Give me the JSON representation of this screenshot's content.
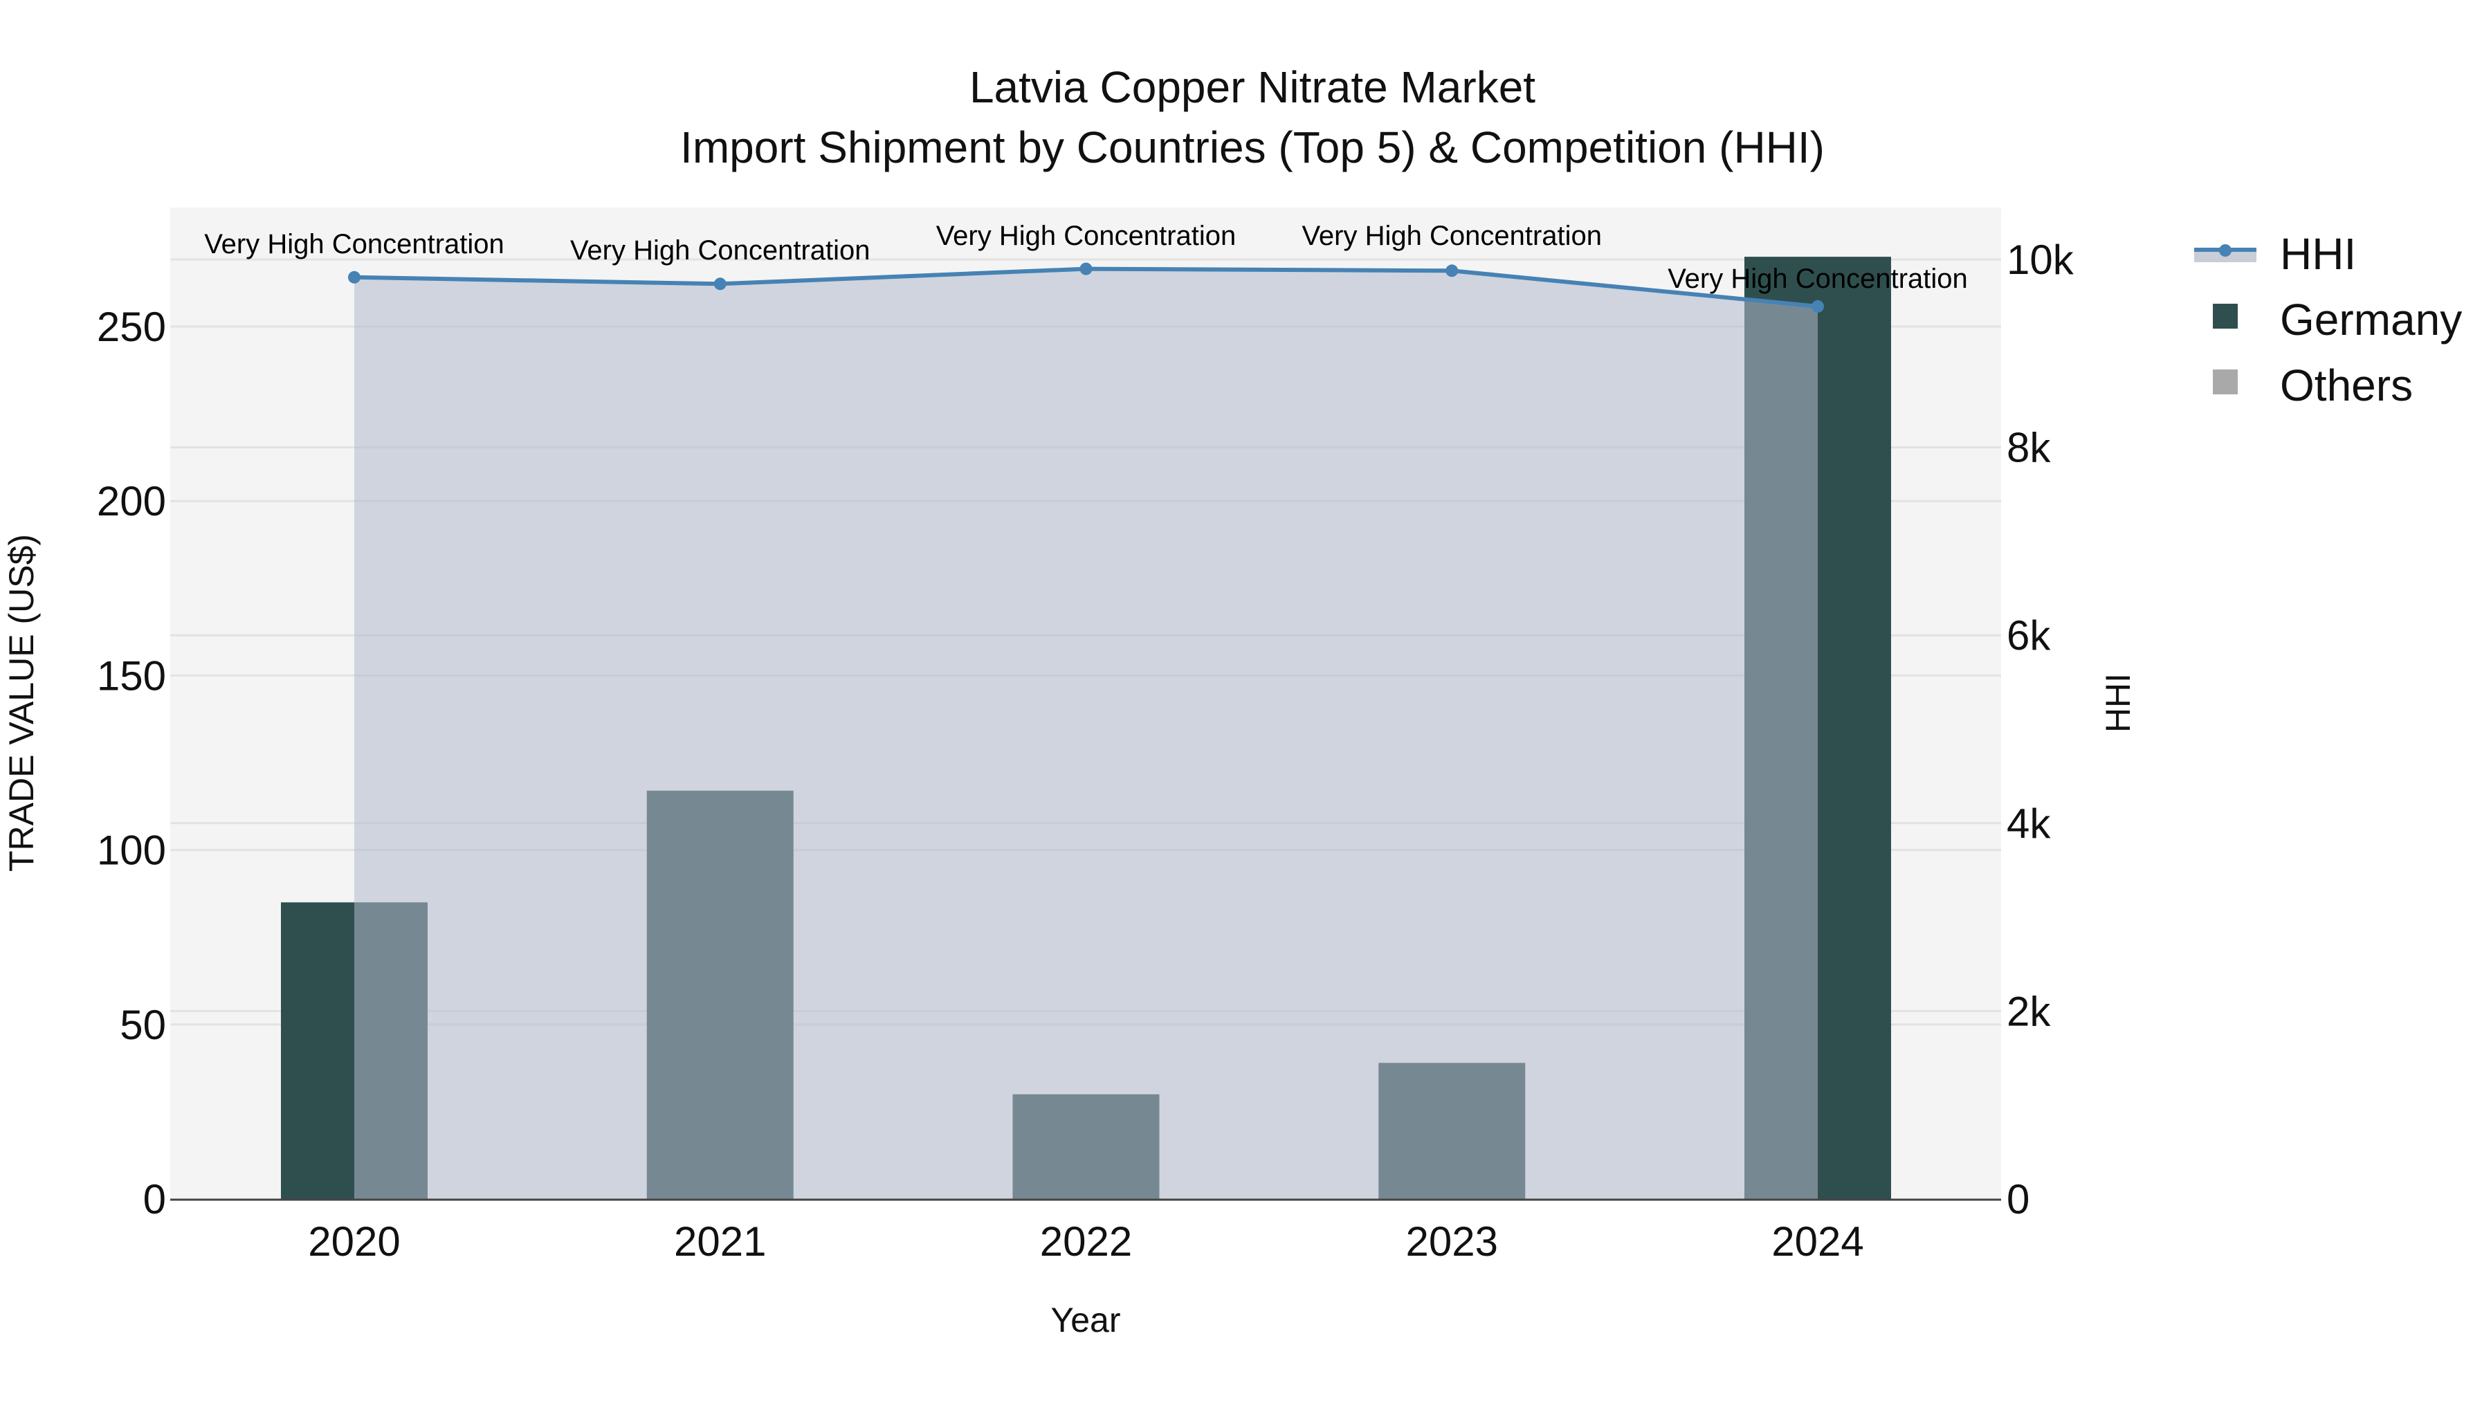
{
  "title": {
    "line1": "Latvia Copper Nitrate Market",
    "line2": "Import Shipment by Countries (Top 5) & Competition (HHI)"
  },
  "axes": {
    "x_title": "Year",
    "y_left_title": "TRADE VALUE (US$)",
    "y_right_title": "HHI",
    "y_left_ticks": [
      "0",
      "50",
      "100",
      "150",
      "200",
      "250"
    ],
    "y_right_ticks": [
      "0",
      "2k",
      "4k",
      "6k",
      "8k",
      "10k"
    ]
  },
  "legend": {
    "items": [
      {
        "label": "HHI",
        "type": "line-area",
        "color": "#4682b4",
        "fill": "#c8cdd6"
      },
      {
        "label": "Germany",
        "type": "square",
        "color": "#2f4f4f"
      },
      {
        "label": "Others",
        "type": "square",
        "color": "#a9a9a9"
      }
    ]
  },
  "colors": {
    "plot_bg": "#f4f4f4",
    "grid": "#e2e2e2",
    "germany": "#2f4f4f",
    "others": "#a9a9a9",
    "hhi_line": "#4682b4",
    "hhi_fill": "rgba(176,186,204,0.55)",
    "axis_line": "#444444"
  },
  "chart_data": {
    "type": "bar",
    "title": "Latvia Copper Nitrate Market — Import Shipment by Countries (Top 5) & Competition (HHI)",
    "xlabel": "Year",
    "ylabel": "TRADE VALUE (US$)",
    "y2label": "HHI",
    "categories": [
      "2020",
      "2021",
      "2022",
      "2023",
      "2024"
    ],
    "ylim": [
      0,
      284
    ],
    "y2lim": [
      0,
      10550
    ],
    "series": [
      {
        "name": "Germany",
        "type": "bar",
        "axis": "left",
        "values": [
          85,
          117,
          30,
          39,
          270
        ]
      },
      {
        "name": "Others",
        "type": "bar",
        "axis": "left",
        "values": [
          0,
          0,
          0,
          0,
          0
        ]
      },
      {
        "name": "HHI",
        "type": "line-area",
        "axis": "right",
        "values": [
          9810,
          9740,
          9900,
          9880,
          9500
        ]
      }
    ],
    "annotations": [
      "Very High Concentration",
      "Very High Concentration",
      "Very High Concentration",
      "Very High Concentration",
      "Very High Concentration"
    ],
    "legend_position": "right-top",
    "grid": true
  }
}
